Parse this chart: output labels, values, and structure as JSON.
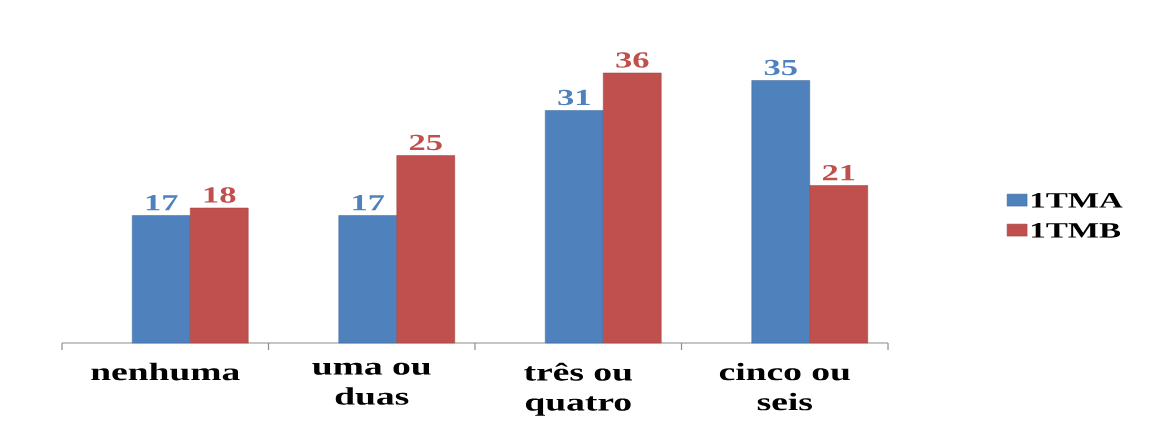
{
  "chart_data": {
    "type": "bar",
    "categories": [
      "nenhuma",
      "uma ou duas",
      "três ou quatro",
      "cinco ou seis"
    ],
    "series": [
      {
        "name": "1TMA",
        "color": "#4f81bd",
        "values": [
          17,
          17,
          31,
          35
        ]
      },
      {
        "name": "1TMB",
        "color": "#c0504d",
        "values": [
          18,
          25,
          36,
          21
        ]
      }
    ],
    "data_labels": true,
    "legend": "right",
    "tick_labels": "x"
  }
}
